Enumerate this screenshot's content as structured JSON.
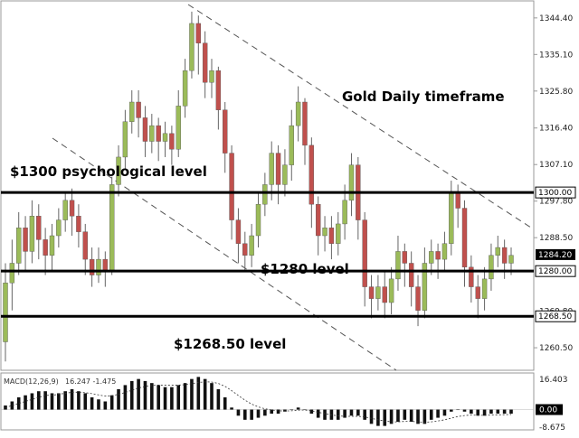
{
  "chart_data": {
    "type": "candlestick",
    "annotations": {
      "title": "Gold Daily timeframe",
      "level_1300": "$1300 psychological level",
      "level_1280": "$1280 level",
      "level_1268": "$1268.50 level"
    },
    "price_axis": {
      "ticks": [
        "1344.40",
        "1335.10",
        "1325.80",
        "1316.40",
        "1307.10",
        "1297.80",
        "1288.50",
        "1260.50"
      ],
      "ylim": [
        1255.0,
        1348.5
      ]
    },
    "horizontal_levels": [
      {
        "value": 1300.0,
        "label": "1300.00"
      },
      {
        "value": 1280.0,
        "label": "1280.00"
      },
      {
        "value": 1268.5,
        "label": "1268.50"
      }
    ],
    "current_price": {
      "value": 1284.2,
      "label": "1284.20"
    },
    "hidden_tick": {
      "value": 1269.8,
      "label": "1269.80"
    },
    "colors": {
      "bull": "#9bbb59",
      "bear": "#c0504d",
      "level": "#000000",
      "price_box": "#000000"
    },
    "candles": [
      [
        1262,
        1277,
        1257,
        1282
      ],
      [
        1277,
        1282,
        1270,
        1288
      ],
      [
        1282,
        1291,
        1279,
        1295
      ],
      [
        1291,
        1285,
        1280,
        1294
      ],
      [
        1285,
        1294,
        1282,
        1298
      ],
      [
        1294,
        1288,
        1283,
        1297
      ],
      [
        1288,
        1284,
        1279,
        1291
      ],
      [
        1284,
        1289,
        1280,
        1292
      ],
      [
        1289,
        1293,
        1286,
        1296
      ],
      [
        1293,
        1298,
        1290,
        1300
      ],
      [
        1298,
        1294,
        1289,
        1301
      ],
      [
        1294,
        1290,
        1286,
        1297
      ],
      [
        1290,
        1283,
        1279,
        1292
      ],
      [
        1283,
        1279,
        1276,
        1286
      ],
      [
        1279,
        1283,
        1277,
        1286
      ],
      [
        1283,
        1280,
        1276,
        1285
      ],
      [
        1280,
        1302,
        1279,
        1304
      ],
      [
        1302,
        1309,
        1299,
        1312
      ],
      [
        1309,
        1318,
        1306,
        1321
      ],
      [
        1318,
        1323,
        1315,
        1326
      ],
      [
        1323,
        1319,
        1314,
        1326
      ],
      [
        1319,
        1313,
        1309,
        1322
      ],
      [
        1313,
        1317,
        1310,
        1320
      ],
      [
        1317,
        1313,
        1308,
        1319
      ],
      [
        1313,
        1315,
        1309,
        1318
      ],
      [
        1315,
        1311,
        1307,
        1317
      ],
      [
        1311,
        1322,
        1309,
        1326
      ],
      [
        1322,
        1331,
        1319,
        1334
      ],
      [
        1331,
        1343,
        1329,
        1346
      ],
      [
        1343,
        1338,
        1330,
        1345
      ],
      [
        1338,
        1328,
        1324,
        1341
      ],
      [
        1328,
        1331,
        1324,
        1334
      ],
      [
        1331,
        1321,
        1316,
        1332
      ],
      [
        1321,
        1310,
        1305,
        1323
      ],
      [
        1310,
        1293,
        1288,
        1312
      ],
      [
        1293,
        1287,
        1282,
        1296
      ],
      [
        1287,
        1284,
        1280,
        1290
      ],
      [
        1284,
        1289,
        1281,
        1292
      ],
      [
        1289,
        1297,
        1286,
        1300
      ],
      [
        1297,
        1302,
        1294,
        1305
      ],
      [
        1302,
        1310,
        1298,
        1313
      ],
      [
        1310,
        1302,
        1297,
        1312
      ],
      [
        1302,
        1307,
        1299,
        1311
      ],
      [
        1307,
        1317,
        1303,
        1321
      ],
      [
        1317,
        1323,
        1313,
        1327
      ],
      [
        1323,
        1312,
        1307,
        1324
      ],
      [
        1312,
        1297,
        1291,
        1314
      ],
      [
        1297,
        1289,
        1284,
        1299
      ],
      [
        1289,
        1291,
        1285,
        1294
      ],
      [
        1291,
        1287,
        1283,
        1294
      ],
      [
        1287,
        1292,
        1284,
        1295
      ],
      [
        1292,
        1298,
        1288,
        1302
      ],
      [
        1298,
        1307,
        1294,
        1310
      ],
      [
        1307,
        1293,
        1288,
        1309
      ],
      [
        1293,
        1276,
        1271,
        1295
      ],
      [
        1276,
        1273,
        1268,
        1279
      ],
      [
        1273,
        1276,
        1270,
        1279
      ],
      [
        1276,
        1272,
        1268,
        1280
      ],
      [
        1272,
        1278,
        1269,
        1281
      ],
      [
        1278,
        1285,
        1275,
        1289
      ],
      [
        1285,
        1282,
        1276,
        1287
      ],
      [
        1282,
        1276,
        1271,
        1285
      ],
      [
        1276,
        1270,
        1266,
        1279
      ],
      [
        1270,
        1282,
        1268,
        1286
      ],
      [
        1282,
        1285,
        1279,
        1288
      ],
      [
        1285,
        1283,
        1278,
        1287
      ],
      [
        1283,
        1287,
        1280,
        1290
      ],
      [
        1287,
        1300,
        1284,
        1303
      ],
      [
        1300,
        1296,
        1291,
        1302
      ],
      [
        1296,
        1281,
        1276,
        1298
      ],
      [
        1281,
        1276,
        1272,
        1284
      ],
      [
        1276,
        1273,
        1268,
        1279
      ],
      [
        1273,
        1278,
        1270,
        1281
      ],
      [
        1278,
        1284,
        1275,
        1287
      ],
      [
        1284,
        1286,
        1281,
        1289
      ],
      [
        1286,
        1282,
        1278,
        1288
      ],
      [
        1282,
        1284,
        1279,
        1286
      ]
    ],
    "macd": {
      "label": "MACD(12,26,9)",
      "values": "16.247 -1.475",
      "ticks": [
        "16.403",
        "0.00",
        "-8.675"
      ],
      "range": [
        -9.5,
        17.5
      ],
      "histogram": [
        2,
        4,
        6,
        7,
        8,
        9,
        9,
        8,
        8,
        9,
        10,
        9,
        8,
        6,
        5,
        4,
        7,
        10,
        12,
        14,
        15,
        14,
        13,
        12,
        11,
        11,
        12,
        13,
        15,
        16,
        15,
        13,
        10,
        6,
        1,
        -3,
        -5,
        -5,
        -4,
        -3,
        -2,
        -2,
        -1,
        0,
        1,
        0,
        -2,
        -4,
        -5,
        -5,
        -5,
        -4,
        -3,
        -3,
        -5,
        -7,
        -8,
        -8,
        -7,
        -6,
        -5,
        -6,
        -7,
        -7,
        -5,
        -4,
        -3,
        -1,
        0,
        -1,
        -2,
        -3,
        -3,
        -2,
        -2,
        -2,
        -2
      ],
      "signal": [
        1,
        2,
        3,
        4,
        5,
        6,
        7,
        7,
        7.5,
        8,
        8.5,
        8.5,
        8.3,
        7.8,
        7.2,
        6.6,
        6.8,
        7.5,
        8.4,
        9.5,
        10.6,
        11.3,
        11.8,
        12,
        12,
        12,
        12,
        12.2,
        12.7,
        13.3,
        13.6,
        13.5,
        12.8,
        11.4,
        9.3,
        6.9,
        4.6,
        2.7,
        1.3,
        0.4,
        -0.2,
        -0.6,
        -0.7,
        -0.6,
        -0.3,
        -0.2,
        -0.6,
        -1.3,
        -2,
        -2.6,
        -3.1,
        -3.3,
        -3.3,
        -3.3,
        -3.6,
        -4.3,
        -5,
        -5.6,
        -6,
        -6,
        -5.8,
        -5.8,
        -6,
        -6.2,
        -6,
        -5.6,
        -5,
        -4.2,
        -3.4,
        -2.9,
        -2.7,
        -2.8,
        -2.8,
        -2.7,
        -2.6,
        -2.5,
        -2.4
      ]
    }
  }
}
